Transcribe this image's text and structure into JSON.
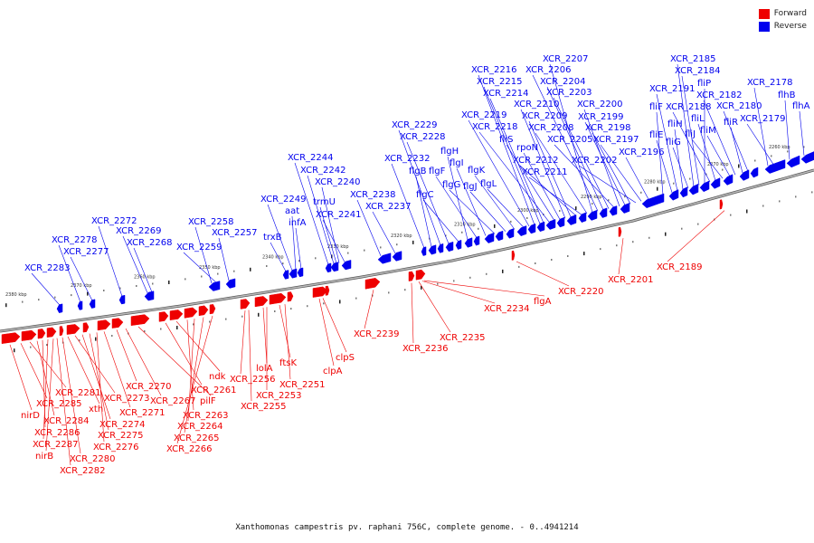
{
  "legend": [
    {
      "label": "Forward",
      "color": "#ee0000"
    },
    {
      "label": "Reverse",
      "color": "#0000ee"
    }
  ],
  "caption": "Xanthomonas campestris pv. raphani 756C, complete genome. - 0..4941214",
  "colors": {
    "forward": "#ee0000",
    "reverse": "#0000ee",
    "backbone": "#888888"
  },
  "ticks": [
    "2380 kbp",
    "2370 kbp",
    "2360 kbp",
    "2350 kbp",
    "2340 kbp",
    "2330 kbp",
    "2320 kbp",
    "2310 kbp",
    "2300 kbp",
    "2290 kbp",
    "2280 kbp",
    "2270 kbp",
    "2260 kbp"
  ],
  "reverse_genes": [
    "XCR_2283",
    "XCR_2278",
    "XCR_2277",
    "XCR_2272",
    "XCR_2269",
    "XCR_2268",
    "XCR_2258",
    "XCR_2259",
    "XCR_2257",
    "trxB",
    "XCR_2249",
    "aat",
    "infA",
    "XCR_2244",
    "XCR_2242",
    "trmU",
    "XCR_2240",
    "XCR_2241",
    "XCR_2238",
    "XCR_2237",
    "XCR_2232",
    "flgB",
    "XCR_2229",
    "XCR_2228",
    "flgC",
    "flgH",
    "flgF",
    "flgI",
    "flgG",
    "flgJ",
    "flgK",
    "flgL",
    "XCR_2219",
    "XCR_2216",
    "XCR_2215",
    "XCR_2214",
    "XCR_2218",
    "fliS",
    "rpoN",
    "XCR_2210",
    "XCR_2209",
    "XCR_2212",
    "XCR_2211",
    "XCR_2208",
    "XCR_2207",
    "XCR_2206",
    "XCR_2204",
    "XCR_2203",
    "XCR_2205",
    "XCR_2200",
    "XCR_2199",
    "XCR_2198",
    "XCR_2202",
    "XCR_2197",
    "XCR_2196",
    "fliF",
    "fliE",
    "XCR_2191",
    "fliH",
    "fliG",
    "XCR_2185",
    "XCR_2184",
    "fliP",
    "XCR_2188",
    "fliL",
    "fliJ",
    "fliM",
    "XCR_2182",
    "fliR",
    "XCR_2180",
    "XCR_2178",
    "XCR_2179",
    "flhB",
    "flhA"
  ],
  "forward_genes": [
    "nirD",
    "XCR_2285",
    "XCR_2281",
    "XCR_2284",
    "XCR_2286",
    "XCR_2287",
    "nirB",
    "XCR_2282",
    "XCR_2280",
    "xth",
    "XCR_2273",
    "XCR_2274",
    "XCR_2275",
    "XCR_2276",
    "XCR_2271",
    "XCR_2270",
    "XCR_2267",
    "pilF",
    "XCR_2261",
    "ndk",
    "XCR_2263",
    "XCR_2264",
    "XCR_2265",
    "XCR_2266",
    "XCR_2256",
    "XCR_2255",
    "lolA",
    "XCR_2253",
    "ftsK",
    "XCR_2251",
    "clpA",
    "clpS",
    "XCR_2239",
    "XCR_2236",
    "XCR_2235",
    "XCR_2234",
    "flgA",
    "XCR_2220",
    "XCR_2201",
    "XCR_2189"
  ]
}
